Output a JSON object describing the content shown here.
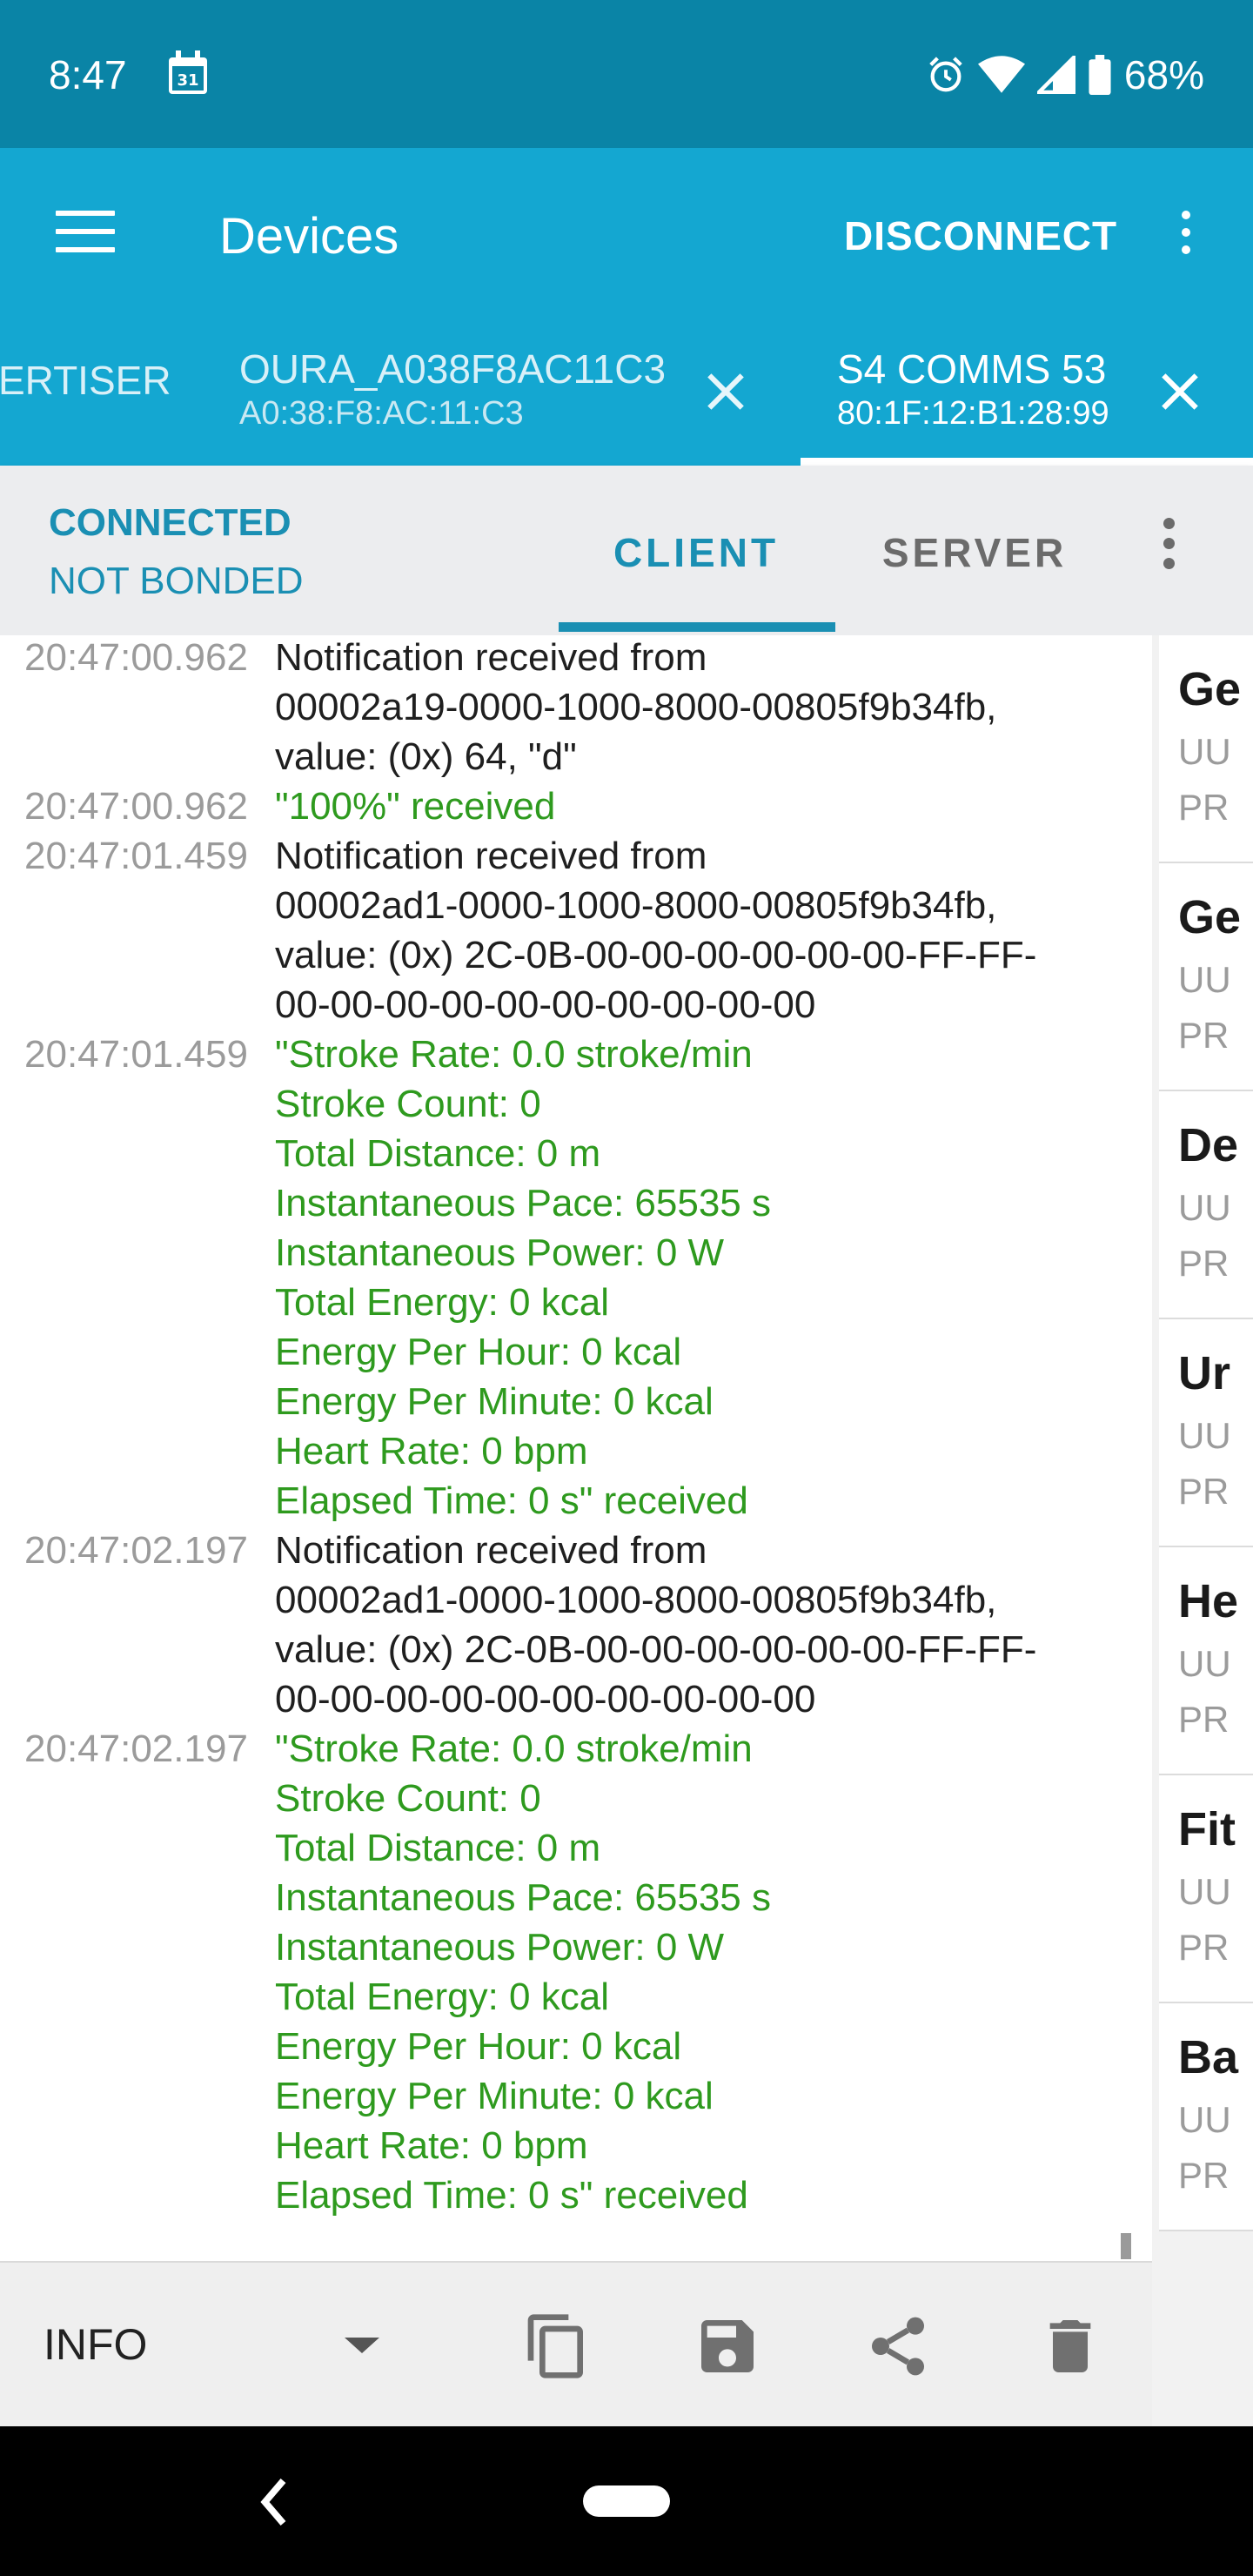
{
  "status_bar": {
    "time": "8:47",
    "battery": "68%"
  },
  "app_bar": {
    "title": "Devices",
    "disconnect": "DISCONNECT"
  },
  "device_tabs": [
    {
      "name": "ERTISER",
      "address": ""
    },
    {
      "name": "OURA_A038F8AC11C3",
      "address": "A0:38:F8:AC:11:C3"
    },
    {
      "name": "S4 COMMS 53",
      "address": "80:1F:12:B1:28:99",
      "active": true
    }
  ],
  "connection": {
    "state": "CONNECTED",
    "bond": "NOT BONDED",
    "tabs": {
      "client": "CLIENT",
      "server": "SERVER"
    }
  },
  "log": [
    {
      "time": "20:47:00.962",
      "kind": "n",
      "text": "Notification received from\n00002a19-0000-1000-8000-00805f9b34fb,\nvalue: (0x) 64, \"d\""
    },
    {
      "time": "20:47:00.962",
      "kind": "g",
      "text": "\"100%\" received"
    },
    {
      "time": "20:47:01.459",
      "kind": "n",
      "text": "Notification received from\n00002ad1-0000-1000-8000-00805f9b34fb,\nvalue: (0x) 2C-0B-00-00-00-00-00-00-FF-FF-\n00-00-00-00-00-00-00-00-00-00"
    },
    {
      "time": "20:47:01.459",
      "kind": "g",
      "text": "\"Stroke Rate: 0.0 stroke/min\nStroke Count: 0\nTotal Distance: 0 m\nInstantaneous Pace: 65535 s\nInstantaneous Power: 0 W\nTotal Energy: 0 kcal\nEnergy Per Hour: 0 kcal\nEnergy Per Minute: 0 kcal\nHeart Rate: 0 bpm\nElapsed Time: 0 s\" received"
    },
    {
      "time": "20:47:02.197",
      "kind": "n",
      "text": "Notification received from\n00002ad1-0000-1000-8000-00805f9b34fb,\nvalue: (0x) 2C-0B-00-00-00-00-00-00-FF-FF-\n00-00-00-00-00-00-00-00-00-00"
    },
    {
      "time": "20:47:02.197",
      "kind": "g",
      "text": "\"Stroke Rate: 0.0 stroke/min\nStroke Count: 0\nTotal Distance: 0 m\nInstantaneous Pace: 65535 s\nInstantaneous Power: 0 W\nTotal Energy: 0 kcal\nEnergy Per Hour: 0 kcal\nEnergy Per Minute: 0 kcal\nHeart Rate: 0 bpm\nElapsed Time: 0 s\" received"
    }
  ],
  "services": [
    {
      "name": "Ge",
      "uuid": "UU",
      "primary": "PR"
    },
    {
      "name": "Ge",
      "uuid": "UU",
      "primary": "PR"
    },
    {
      "name": "De",
      "uuid": "UU",
      "primary": "PR"
    },
    {
      "name": "Ur",
      "uuid": "UU",
      "primary": "PR"
    },
    {
      "name": "He",
      "uuid": "UU",
      "primary": "PR"
    },
    {
      "name": "Fit",
      "uuid": "UU",
      "primary": "PR"
    },
    {
      "name": "Ba",
      "uuid": "UU",
      "primary": "PR"
    }
  ],
  "toolbar": {
    "log_level": "INFO",
    "icons": [
      "copy-icon",
      "save-icon",
      "share-icon",
      "delete-icon"
    ]
  },
  "colors": {
    "status_bar": "#0a84a6",
    "app_bar": "#14a7d1",
    "accent": "#1a8fb3",
    "success_text": "#2e9a1e"
  }
}
